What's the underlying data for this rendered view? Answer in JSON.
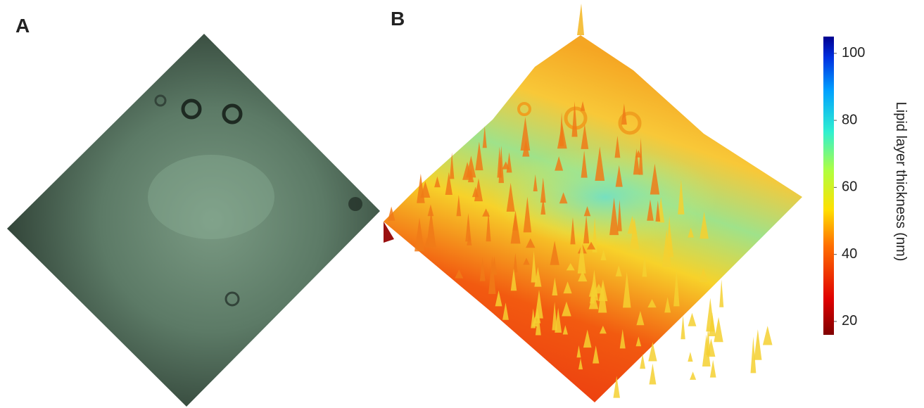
{
  "panels": [
    {
      "label": "A"
    },
    {
      "label": "B"
    }
  ],
  "colorbar": {
    "label": "Lipid layer thickness (nm)",
    "lim": [
      16,
      105
    ],
    "ticks": [
      20,
      40,
      60,
      80,
      100
    ]
  }
}
